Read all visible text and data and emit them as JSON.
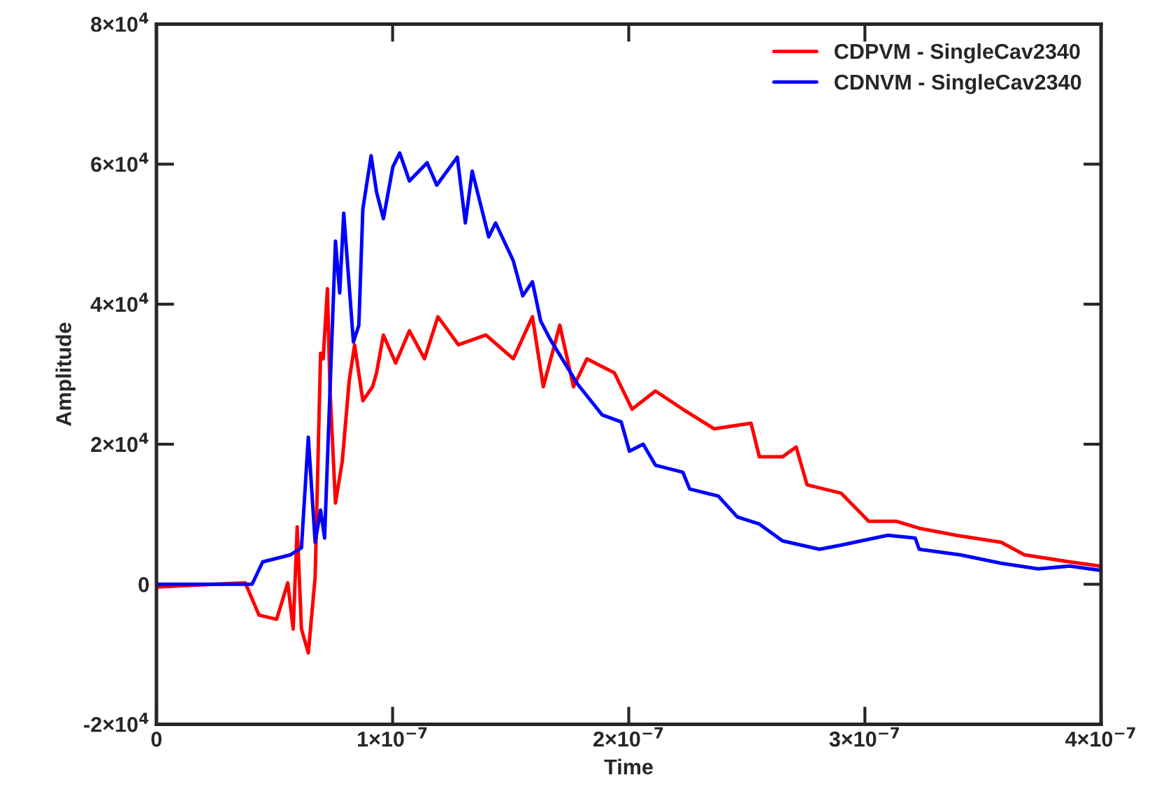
{
  "chart_data": {
    "type": "line",
    "xlabel": "Time",
    "ylabel": "Amplitude",
    "legend": "top right",
    "grid": false,
    "marker": "none",
    "line_style": "solid",
    "xlim": [
      0,
      4e-07
    ],
    "ylim": [
      -20000,
      80000
    ],
    "xticks": [
      0,
      {
        "value": 1e-07,
        "label": "1×10$^{−7}$"
      },
      {
        "value": 2e-07,
        "label": "2×10$^{−7}$"
      },
      {
        "value": 3e-07,
        "label": "3×10$^{−7}$"
      },
      {
        "value": 4e-07,
        "label": "4×10$^{−7}$"
      }
    ],
    "yticks": [
      {
        "value": -20000,
        "label": "-2×10$^{4}$"
      },
      0,
      {
        "value": 20000,
        "label": "2×10$^{4}$"
      },
      {
        "value": 40000,
        "label": "4×10$^{4}$"
      },
      {
        "value": 60000,
        "label": "6×10$^{4}$"
      },
      {
        "value": 80000,
        "label": "8×10$^{4}$"
      }
    ],
    "series": [
      {
        "name": "CDPVM - SingleCav2340",
        "color": "#ff0000",
        "x": [
          0,
          3.76e-08,
          4.34e-08,
          5.09e-08,
          5.56e-08,
          5.79e-08,
          5.96e-08,
          6.14e-08,
          6.43e-08,
          6.72e-08,
          6.95e-08,
          7.06e-08,
          7.24e-08,
          7.35e-08,
          7.58e-08,
          7.87e-08,
          8.16e-08,
          8.39e-08,
          8.74e-08,
          9.15e-08,
          9.32e-08,
          9.61e-08,
          1.013e-07,
          1.071e-07,
          1.135e-07,
          1.192e-07,
          1.279e-07,
          1.395e-07,
          1.511e-07,
          1.592e-07,
          1.638e-07,
          1.708e-07,
          1.766e-07,
          1.823e-07,
          1.939e-07,
          2.014e-07,
          2.113e-07,
          2.229e-07,
          2.362e-07,
          2.518e-07,
          2.553e-07,
          2.651e-07,
          2.709e-07,
          2.755e-07,
          2.9e-07,
          3.016e-07,
          3.132e-07,
          3.23e-07,
          3.386e-07,
          3.577e-07,
          3.676e-07,
          3.867e-07,
          3.994e-07
        ],
        "values": [
          -400,
          200,
          -4400,
          -5000,
          200,
          -6400,
          8200,
          -6400,
          -9800,
          1000,
          33000,
          32200,
          42200,
          27600,
          11600,
          17600,
          29000,
          34200,
          26200,
          28200,
          30200,
          35600,
          31600,
          36200,
          32200,
          38200,
          34200,
          35600,
          32200,
          38200,
          28200,
          37000,
          28200,
          32200,
          30200,
          25000,
          27600,
          25000,
          22200,
          23000,
          18200,
          18200,
          19600,
          14200,
          13000,
          9000,
          9000,
          8000,
          7000,
          6000,
          4200,
          3200,
          2600
        ]
      },
      {
        "name": "CDNVM - SingleCav2340",
        "color": "#0000ff",
        "x": [
          0,
          4.05e-08,
          4.5e-08,
          5.67e-08,
          6.14e-08,
          6.43e-08,
          6.72e-08,
          6.95e-08,
          7.12e-08,
          7.58e-08,
          7.76e-08,
          7.93e-08,
          8.34e-08,
          8.57e-08,
          8.74e-08,
          9.09e-08,
          9.32e-08,
          9.61e-08,
          1.001e-07,
          1.03e-07,
          1.071e-07,
          1.146e-07,
          1.187e-07,
          1.274e-07,
          1.308e-07,
          1.337e-07,
          1.407e-07,
          1.436e-07,
          1.511e-07,
          1.551e-07,
          1.592e-07,
          1.627e-07,
          1.667e-07,
          1.783e-07,
          1.887e-07,
          1.968e-07,
          2.003e-07,
          2.061e-07,
          2.113e-07,
          2.229e-07,
          2.258e-07,
          2.379e-07,
          2.46e-07,
          2.553e-07,
          2.651e-07,
          2.808e-07,
          2.9e-07,
          3.097e-07,
          3.213e-07,
          3.23e-07,
          3.404e-07,
          3.577e-07,
          3.734e-07,
          3.867e-07,
          3.994e-07
        ],
        "values": [
          0,
          0,
          3200,
          4200,
          5200,
          21000,
          6000,
          10600,
          6600,
          49000,
          41600,
          53000,
          34600,
          37000,
          53600,
          61200,
          56000,
          52200,
          59600,
          61600,
          57600,
          60200,
          57000,
          61000,
          51600,
          59000,
          49600,
          51600,
          46200,
          41200,
          43200,
          37600,
          35000,
          28600,
          24200,
          23200,
          19000,
          20000,
          17000,
          16000,
          13600,
          12600,
          9600,
          8600,
          6200,
          5000,
          5600,
          7000,
          6600,
          5000,
          4200,
          3000,
          2200,
          2600,
          2000
        ]
      }
    ]
  }
}
